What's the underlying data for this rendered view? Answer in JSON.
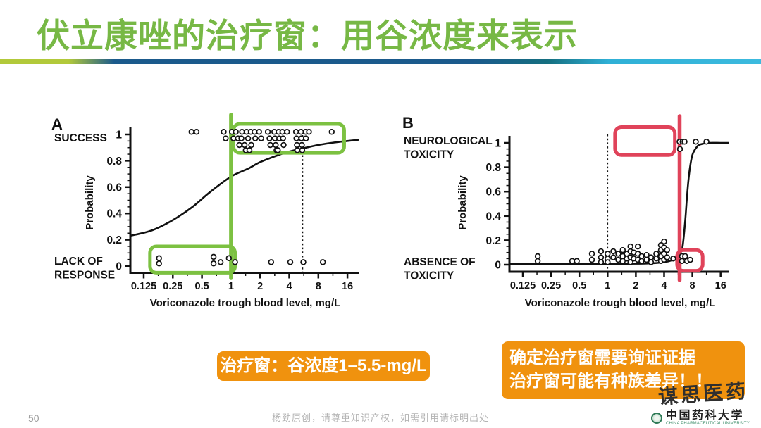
{
  "slide": {
    "title": "伏立康唑的治疗窗：用谷浓度来表示",
    "page_number": "50",
    "footer_note": "杨劲原创，请尊重知识产权，如需引用请标明出处",
    "watermark": "谋思医药",
    "logo": {
      "name": "中国药科大学",
      "caption": "CHINA PHARMACEUTICAL UNIVERSITY"
    },
    "colors": {
      "title_green": "#77b845",
      "annotation_green": "#7cc141",
      "annotation_red": "#e0435a",
      "callout_orange": "#f0920e",
      "ink": "#111111"
    }
  },
  "callouts": {
    "window_label": "治疗窗：谷浓度1–5.5-mg/L",
    "note_line1": "确定治疗窗需要询证证据",
    "note_line2": "治疗窗可能有种族差异！！"
  },
  "chart_data": [
    {
      "panel_label": "A",
      "type": "scatter",
      "top_label": [
        "SUCCESS"
      ],
      "bottom_label": [
        "LACK OF",
        "RESPONSE"
      ],
      "x_axis": {
        "label": "Voriconazole trough blood level, mg/L",
        "scale": "log2",
        "ticks": [
          0.125,
          0.25,
          0.5,
          1,
          2,
          4,
          8,
          16
        ],
        "tick_labels": [
          "0.125",
          "0.25",
          "0.5",
          "1",
          "2",
          "4",
          "8",
          "16"
        ],
        "range": [
          0.09,
          21
        ]
      },
      "y_axis": {
        "label": "Probability",
        "ticks": [
          0,
          0.2,
          0.4,
          0.6,
          0.8,
          1
        ],
        "tick_labels": [
          "0",
          "0.2",
          "0.4",
          "0.6",
          "0.8",
          "1"
        ],
        "range": [
          0,
          1
        ]
      },
      "dashed_vline_x": 5.5,
      "curve_points": [
        [
          0.09,
          0.23
        ],
        [
          0.15,
          0.27
        ],
        [
          0.25,
          0.35
        ],
        [
          0.4,
          0.45
        ],
        [
          0.6,
          0.56
        ],
        [
          1,
          0.68
        ],
        [
          1.5,
          0.74
        ],
        [
          2,
          0.79
        ],
        [
          3,
          0.84
        ],
        [
          4,
          0.87
        ],
        [
          6,
          0.9
        ],
        [
          8,
          0.92
        ],
        [
          12,
          0.94
        ],
        [
          16,
          0.95
        ],
        [
          21,
          0.96
        ]
      ],
      "series": [
        {
          "name": "success",
          "points": [
            [
              0.39,
              1.02
            ],
            [
              0.44,
              1.02
            ],
            [
              0.84,
              1.02
            ],
            [
              0.88,
              0.97
            ],
            [
              1.02,
              1.02
            ],
            [
              1.06,
              0.97
            ],
            [
              1.12,
              1.02
            ],
            [
              1.18,
              0.97
            ],
            [
              1.22,
              0.92
            ],
            [
              1.3,
              1.02
            ],
            [
              1.28,
              0.97
            ],
            [
              1.38,
              0.92
            ],
            [
              1.42,
              0.88
            ],
            [
              1.45,
              1.02
            ],
            [
              1.5,
              0.97
            ],
            [
              1.55,
              0.88
            ],
            [
              1.6,
              1.02
            ],
            [
              1.62,
              0.92
            ],
            [
              1.75,
              1.02
            ],
            [
              1.78,
              0.97
            ],
            [
              1.95,
              1.02
            ],
            [
              2.05,
              0.97
            ],
            [
              2.4,
              1.02
            ],
            [
              2.5,
              0.97
            ],
            [
              2.55,
              0.92
            ],
            [
              2.8,
              1.02
            ],
            [
              2.85,
              0.97
            ],
            [
              2.9,
              0.92
            ],
            [
              2.95,
              0.88
            ],
            [
              3.1,
              1.02
            ],
            [
              3.15,
              0.97
            ],
            [
              3.05,
              0.88
            ],
            [
              3.4,
              1.02
            ],
            [
              3.45,
              0.97
            ],
            [
              3.5,
              0.92
            ],
            [
              3.8,
              1.02
            ],
            [
              4.7,
              1.02
            ],
            [
              4.75,
              0.97
            ],
            [
              4.8,
              0.92
            ],
            [
              4.85,
              0.88
            ],
            [
              5.3,
              1.02
            ],
            [
              5.35,
              0.97
            ],
            [
              5.4,
              0.92
            ],
            [
              5.45,
              0.88
            ],
            [
              5.9,
              1.02
            ],
            [
              5.95,
              0.97
            ],
            [
              6.4,
              1.02
            ],
            [
              11,
              1.02
            ]
          ]
        },
        {
          "name": "lack_of_response",
          "points": [
            [
              0.18,
              0.06
            ],
            [
              0.18,
              0.02
            ],
            [
              0.66,
              0.07
            ],
            [
              0.66,
              0.02
            ],
            [
              0.78,
              0.03
            ],
            [
              0.95,
              0.06
            ],
            [
              1.1,
              0.03
            ],
            [
              2.6,
              0.03
            ],
            [
              4.1,
              0.03
            ],
            [
              5.6,
              0.03
            ],
            [
              8.9,
              0.03
            ]
          ]
        }
      ],
      "annotations": {
        "color": "#7cc141",
        "vline_x": 1,
        "boxes": [
          {
            "x1": 1.06,
            "x2": 14.8,
            "y1": 0.86,
            "y2": 1.08
          },
          {
            "x1": 0.145,
            "x2": 1.1,
            "y1": -0.05,
            "y2": 0.15
          }
        ]
      }
    },
    {
      "panel_label": "B",
      "type": "scatter",
      "top_label": [
        "NEUROLOGICAL",
        "TOXICITY"
      ],
      "bottom_label": [
        "ABSENCE OF",
        "TOXICITY"
      ],
      "x_axis": {
        "label": "Voriconazole trough blood level, mg/L",
        "scale": "log2",
        "ticks": [
          0.125,
          0.25,
          0.5,
          1,
          2,
          4,
          8,
          16
        ],
        "tick_labels": [
          "0.125",
          "0.25",
          "0.5",
          "1",
          "2",
          "4",
          "8",
          "16"
        ],
        "range": [
          0.09,
          21
        ]
      },
      "y_axis": {
        "label": "Probability",
        "ticks": [
          0,
          0.2,
          0.4,
          0.6,
          0.8,
          1
        ],
        "tick_labels": [
          "0",
          "0.2",
          "0.4",
          "0.6",
          "0.8",
          "1"
        ],
        "range": [
          0,
          1
        ]
      },
      "dashed_vline_x": 1,
      "curve_points": [
        [
          0.09,
          0.005
        ],
        [
          0.5,
          0.005
        ],
        [
          1,
          0.006
        ],
        [
          2,
          0.008
        ],
        [
          3,
          0.012
        ],
        [
          4,
          0.02
        ],
        [
          5,
          0.04
        ],
        [
          5.5,
          0.06
        ],
        [
          6,
          0.1
        ],
        [
          6.3,
          0.15
        ],
        [
          6.7,
          0.35
        ],
        [
          7,
          0.55
        ],
        [
          7.4,
          0.75
        ],
        [
          8,
          0.9
        ],
        [
          9,
          0.97
        ],
        [
          10,
          0.99
        ],
        [
          12,
          1.0
        ],
        [
          16,
          1.0
        ],
        [
          21,
          1.0
        ]
      ],
      "series": [
        {
          "name": "neurological_toxicity",
          "points": [
            [
              5.85,
              1.01
            ],
            [
              5.9,
              0.95
            ],
            [
              6.3,
              1.01
            ],
            [
              6.6,
              1.01
            ],
            [
              8.7,
              1.01
            ],
            [
              11.3,
              1.01
            ]
          ]
        },
        {
          "name": "absence_of_toxicity",
          "points": [
            [
              0.18,
              0.07
            ],
            [
              0.18,
              0.03
            ],
            [
              0.42,
              0.03
            ],
            [
              0.47,
              0.03
            ],
            [
              0.68,
              0.09
            ],
            [
              0.68,
              0.04
            ],
            [
              0.85,
              0.11
            ],
            [
              0.85,
              0.06
            ],
            [
              0.85,
              0.02
            ],
            [
              1.0,
              0.09
            ],
            [
              1.0,
              0.05
            ],
            [
              1.0,
              0.02
            ],
            [
              1.15,
              0.11
            ],
            [
              1.15,
              0.06
            ],
            [
              1.3,
              0.09
            ],
            [
              1.3,
              0.04
            ],
            [
              1.45,
              0.12
            ],
            [
              1.45,
              0.07
            ],
            [
              1.45,
              0.03
            ],
            [
              1.6,
              0.09
            ],
            [
              1.6,
              0.05
            ],
            [
              1.75,
              0.15
            ],
            [
              1.75,
              0.11
            ],
            [
              1.75,
              0.06
            ],
            [
              1.75,
              0.02
            ],
            [
              1.9,
              0.1
            ],
            [
              1.9,
              0.05
            ],
            [
              2.1,
              0.15
            ],
            [
              2.1,
              0.09
            ],
            [
              2.1,
              0.04
            ],
            [
              2.3,
              0.07
            ],
            [
              2.3,
              0.03
            ],
            [
              2.6,
              0.08
            ],
            [
              2.6,
              0.04
            ],
            [
              2.9,
              0.06
            ],
            [
              2.9,
              0.02
            ],
            [
              3.3,
              0.09
            ],
            [
              3.3,
              0.05
            ],
            [
              3.7,
              0.16
            ],
            [
              3.7,
              0.12
            ],
            [
              3.7,
              0.07
            ],
            [
              3.7,
              0.03
            ],
            [
              4.0,
              0.19
            ],
            [
              4.0,
              0.14
            ],
            [
              4.0,
              0.09
            ],
            [
              4.0,
              0.04
            ],
            [
              4.3,
              0.12
            ],
            [
              4.3,
              0.06
            ],
            [
              5.0,
              0.05
            ],
            [
              6.2,
              0.07
            ],
            [
              6.2,
              0.03
            ],
            [
              6.7,
              0.07
            ],
            [
              7.0,
              0.03
            ],
            [
              7.6,
              0.04
            ]
          ]
        }
      ],
      "annotations": {
        "color": "#e0435a",
        "vline_x": 5.85,
        "boxes": [
          {
            "x1": 1.2,
            "x2": 5.2,
            "y1": 0.9,
            "y2": 1.13
          },
          {
            "x1": 5.5,
            "x2": 10.3,
            "y1": -0.05,
            "y2": 0.12
          }
        ]
      }
    }
  ]
}
